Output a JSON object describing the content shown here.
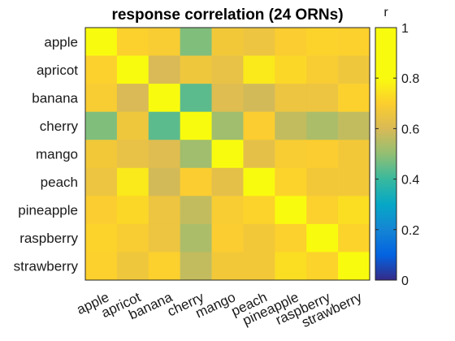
{
  "chart_data": {
    "type": "heatmap",
    "title": "response correlation (24 ORNs)",
    "xlabel": "",
    "ylabel": "",
    "categories": [
      "apple",
      "apricot",
      "banana",
      "cherry",
      "mango",
      "peach",
      "pineapple",
      "raspberry",
      "strawberry"
    ],
    "values": [
      [
        1.0,
        0.88,
        0.86,
        0.6,
        0.84,
        0.82,
        0.87,
        0.89,
        0.88
      ],
      [
        0.88,
        1.0,
        0.75,
        0.83,
        0.8,
        0.95,
        0.9,
        0.86,
        0.83
      ],
      [
        0.86,
        0.75,
        1.0,
        0.55,
        0.77,
        0.74,
        0.82,
        0.82,
        0.88
      ],
      [
        0.6,
        0.83,
        0.55,
        1.0,
        0.65,
        0.87,
        0.71,
        0.67,
        0.71
      ],
      [
        0.84,
        0.8,
        0.77,
        0.65,
        1.0,
        0.79,
        0.86,
        0.87,
        0.84
      ],
      [
        0.82,
        0.95,
        0.74,
        0.87,
        0.79,
        1.0,
        0.89,
        0.84,
        0.84
      ],
      [
        0.87,
        0.9,
        0.82,
        0.71,
        0.86,
        0.89,
        1.0,
        0.88,
        0.92
      ],
      [
        0.89,
        0.86,
        0.82,
        0.67,
        0.87,
        0.84,
        0.88,
        1.0,
        0.89
      ],
      [
        0.88,
        0.83,
        0.88,
        0.71,
        0.84,
        0.84,
        0.92,
        0.89,
        1.0
      ]
    ],
    "clim": [
      0,
      1
    ],
    "colormap": "parula",
    "colorbar": {
      "label": "r",
      "ticks": [
        0,
        0.2,
        0.4,
        0.6,
        0.8,
        1
      ],
      "tick_labels": [
        "0",
        "0.2",
        "0.4",
        "0.6",
        "0.8",
        "1"
      ]
    },
    "grid": false
  }
}
